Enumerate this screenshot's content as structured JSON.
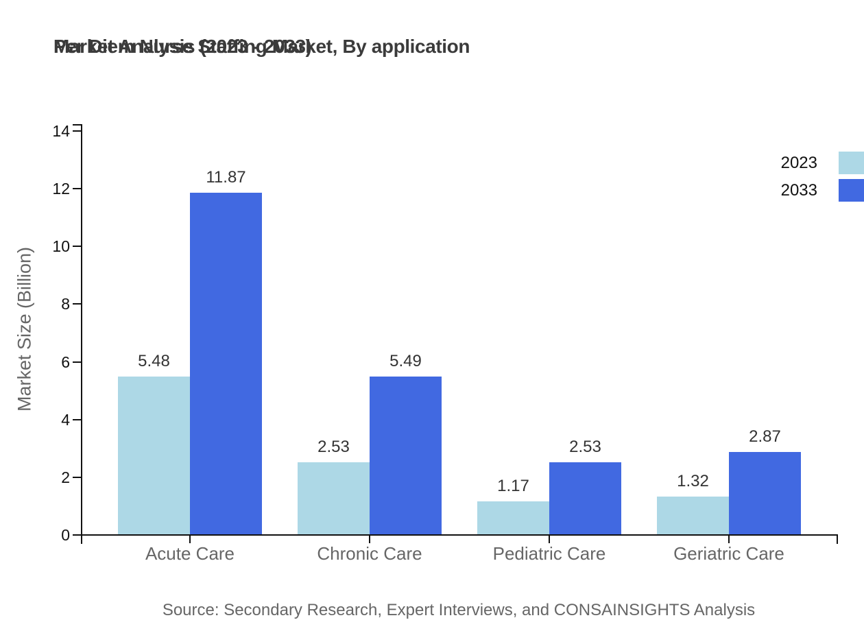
{
  "chart_data": {
    "type": "bar",
    "title_line1": "Per Diem Nurse Staffing Market, By application",
    "title_line2": "Market Analysis (2023 - 2033)",
    "ylabel": "Market Size (Billion)",
    "xlabel": "",
    "categories": [
      "Acute Care",
      "Chronic Care",
      "Pediatric Care",
      "Geriatric Care"
    ],
    "series": [
      {
        "name": "2023",
        "color": "#add8e6",
        "values": [
          5.48,
          2.53,
          1.17,
          1.32
        ]
      },
      {
        "name": "2033",
        "color": "#4169e1",
        "values": [
          11.87,
          5.49,
          2.53,
          2.87
        ]
      }
    ],
    "ylim": [
      0,
      14
    ],
    "yticks": [
      0,
      2,
      4,
      6,
      8,
      10,
      12,
      14
    ],
    "grid": false,
    "legend_position": "top-right",
    "value_labels_decimals": 2,
    "source": "Source: Secondary Research, Expert Interviews, and CONSAINSIGHTS Analysis",
    "colors": {
      "title": "#3b3b3b",
      "axis": "#111111",
      "tick_label": "#111111",
      "category_label": "#666666",
      "value_label": "#333333",
      "axis_title": "#666666",
      "source": "#666666",
      "legend_text": "#111111",
      "background": "#ffffff"
    }
  }
}
